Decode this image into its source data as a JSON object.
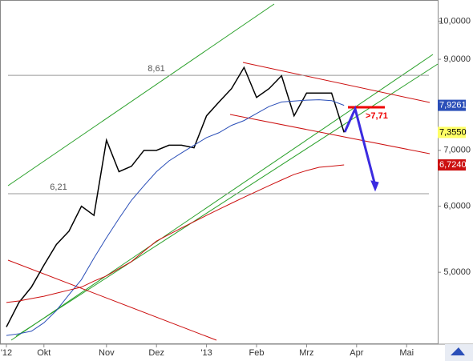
{
  "chart_data": {
    "type": "line",
    "log_scale": true,
    "categories": [
      "'12",
      null,
      null,
      "Okt",
      null,
      null,
      null,
      null,
      "Nov",
      null,
      null,
      null,
      "Dez",
      null,
      null,
      null,
      "'13",
      null,
      null,
      null,
      "Feb",
      null,
      null,
      null,
      "Mrz",
      null,
      null,
      null,
      "Apr",
      null,
      null,
      null,
      "Mai",
      null
    ],
    "series": [
      {
        "name": "Kurs",
        "color": "#000000",
        "values": [
          4.3,
          4.6,
          4.8,
          5.1,
          5.4,
          5.6,
          6.0,
          5.85,
          7.2,
          6.6,
          6.7,
          7.0,
          7.0,
          7.1,
          7.1,
          7.05,
          7.7,
          8.0,
          8.3,
          8.8,
          8.1,
          8.3,
          8.6,
          7.7,
          8.2,
          8.2,
          8.2,
          7.355,
          null,
          null,
          null,
          null,
          null,
          null
        ]
      },
      {
        "name": "GD 1",
        "color": "#2b4fb8",
        "values": [
          4.2,
          4.22,
          4.25,
          4.35,
          4.5,
          4.7,
          4.9,
          5.2,
          5.5,
          5.8,
          6.1,
          6.35,
          6.6,
          6.8,
          6.95,
          7.1,
          7.25,
          7.35,
          7.5,
          7.6,
          7.75,
          7.9,
          8.0,
          8.02,
          8.04,
          8.05,
          8.03,
          7.9261,
          null,
          null,
          null,
          null,
          null,
          null
        ]
      },
      {
        "name": "GD 2",
        "color": "#cc1010",
        "values": [
          4.6,
          4.62,
          4.65,
          4.68,
          4.72,
          4.76,
          4.8,
          4.88,
          4.95,
          5.05,
          5.15,
          5.3,
          5.45,
          5.55,
          5.65,
          5.75,
          5.85,
          5.95,
          6.05,
          6.15,
          6.25,
          6.35,
          6.45,
          6.55,
          6.62,
          6.68,
          6.7,
          6.724,
          null,
          null,
          null,
          null,
          null,
          null
        ]
      }
    ],
    "ylim": [
      4.1,
      10.6
    ],
    "yticks": [
      {
        "value": 5,
        "label": "5,0000"
      },
      {
        "value": 6,
        "label": "6,0000"
      },
      {
        "value": 7,
        "label": "7,0000"
      },
      {
        "value": 9,
        "label": "9,0000"
      },
      {
        "value": 10,
        "label": "10,0000"
      }
    ],
    "levels": [
      {
        "value": 8.61,
        "label": "8,61"
      },
      {
        "value": 6.21,
        "label": "6,21"
      }
    ],
    "price_boxes": [
      {
        "value": 7.9261,
        "label": "7,9261",
        "color": "#2b4fb8",
        "text_color": "#ffffff"
      },
      {
        "value": 7.355,
        "label": "7,3550",
        "color": "#ffff66",
        "text_color": "#000000"
      },
      {
        "value": 6.724,
        "label": "6,7240",
        "color": "#cc1010",
        "text_color": "#ffffff"
      }
    ],
    "target_label": ">7,71"
  }
}
